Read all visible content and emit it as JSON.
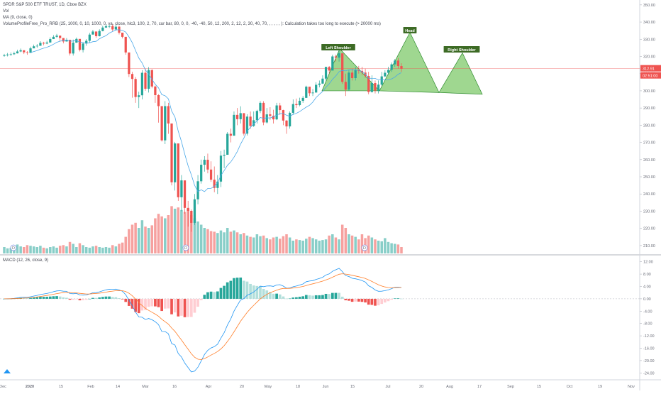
{
  "header": {
    "symbol_line": "SPDR S&P 500 ETF TRUST, 1D, Cboe BZX",
    "vol_label": "Vol",
    "ma_label": "MA (9, close, 0)",
    "vp_label": "VolumeProfileFree_Pro_RRB (25, 1000, 0, 10, 1000, 0, va, close, hlc3, 100, 2, 70, cur bar, 80, 0, 0, -40, -40, 50, 12, 200, 2, 12, 2, 30, 40, 70, , , , , , ): Calculation takes too long to execute (> 20000 ms)",
    "macd_label": "MACD (12, 26, close, 9)"
  },
  "chart_data": [
    {
      "type": "candlestick",
      "title": "SPDR S&P 500 ETF TRUST, 1D, Cboe BZX",
      "ylim": [
        205,
        352
      ],
      "yticks": [
        210,
        220,
        230,
        240,
        250,
        260,
        270,
        280,
        290,
        300,
        310,
        320,
        330,
        340,
        350
      ],
      "last_price": "312.91",
      "countdown": "02:51:00",
      "x_ticks": [
        "Dec",
        "2020",
        "15",
        "Feb",
        "14",
        "Mar",
        "16",
        "Apr",
        "20",
        "May",
        "18",
        "Jun",
        "15",
        "Jul",
        "20",
        "Aug",
        "17",
        "Sep",
        "15",
        "Oct",
        "19",
        "Nov"
      ],
      "close": [
        320.7,
        321.1,
        321.3,
        321.8,
        322.9,
        323.6,
        322.4,
        322.1,
        324.7,
        325.9,
        326.2,
        327.9,
        327.5,
        328.1,
        330.1,
        331.4,
        332.1,
        330.7,
        328.7,
        329.7,
        321.7,
        328.0,
        330.2,
        323.8,
        327.5,
        329.1,
        332.7,
        334.5,
        331.8,
        334.8,
        336.8,
        337.6,
        337.6,
        335.7,
        337.3,
        333.8,
        331.4,
        322.3,
        309.8,
        306.9,
        296.4,
        297.4,
        310.5,
        301.2,
        312.1,
        302.5,
        297.5,
        291.1,
        271.2,
        291.1,
        281.0,
        246.8,
        269.4,
        238.1,
        247.9,
        231.9,
        230.2,
        223.2,
        236.9,
        247.4,
        257.0,
        259.9,
        254.2,
        248.3,
        243.5,
        247.2,
        262.3,
        262.8,
        275.0,
        273.9,
        286.0,
        283.5,
        287.0,
        275.1,
        285.0,
        279.6,
        282.9,
        288.3,
        293.0,
        281.6,
        286.3,
        285.5,
        283.4,
        291.5,
        288.8,
        282.7,
        279.3,
        287.2,
        292.3,
        291.7,
        294.2,
        295.9,
        302.4,
        298.6,
        299.0,
        303.5,
        304.2,
        307.1,
        313.9,
        311.8,
        320.0,
        319.3,
        321.8,
        305.2,
        300.7,
        310.6,
        307.4,
        312.0,
        311.6,
        310.6,
        308.6,
        299.3,
        304.5,
        300.1,
        303.6,
        308.4,
        310.5,
        312.2,
        315.4,
        317.6,
        314.4,
        312.9
      ],
      "high": [
        321.5,
        322.0,
        322.3,
        322.8,
        323.9,
        324.6,
        323.4,
        323.1,
        325.7,
        326.9,
        327.2,
        328.9,
        328.5,
        329.1,
        331.1,
        332.4,
        333.1,
        331.7,
        329.7,
        330.7,
        323.7,
        329.8,
        331.0,
        327.0,
        328.3,
        330.1,
        333.7,
        335.5,
        332.8,
        335.8,
        337.8,
        338.6,
        338.6,
        338.6,
        338.5,
        337.9,
        333.0,
        328.0,
        314.0,
        311.0,
        308.0,
        299.5,
        312.0,
        313.0,
        313.8,
        312.5,
        303.0,
        298.0,
        281.0,
        294.0,
        293.0,
        256.0,
        270.3,
        256.0,
        251.0,
        247.0,
        236.0,
        231.0,
        240.0,
        251.0,
        260.0,
        262.0,
        263.5,
        259.0,
        256.0,
        251.0,
        265.0,
        265.8,
        276.0,
        278.0,
        288.0,
        290.0,
        291.0,
        287.0,
        286.4,
        288.0,
        288.0,
        289.0,
        294.0,
        294.0,
        290.0,
        290.5,
        289.0,
        293.0,
        293.0,
        289.0,
        283.0,
        288.0,
        295.0,
        295.5,
        296.0,
        297.0,
        303.0,
        302.0,
        301.0,
        305.0,
        306.0,
        309.0,
        314.0,
        314.4,
        321.0,
        321.0,
        323.5,
        318.0,
        310.0,
        312.0,
        313.0,
        314.0,
        314.5,
        314.0,
        313.0,
        311.0,
        309.0,
        306.0,
        306.0,
        311.0,
        312.0,
        314.0,
        316.5,
        318.5,
        319.0,
        316.0
      ],
      "low": [
        319.8,
        320.0,
        320.3,
        320.9,
        321.7,
        322.5,
        321.4,
        321.0,
        322.0,
        324.8,
        325.0,
        326.7,
        326.5,
        327.1,
        328.0,
        330.3,
        330.8,
        328.8,
        327.6,
        328.6,
        320.5,
        320.5,
        328.0,
        322.9,
        322.3,
        326.2,
        328.0,
        333.0,
        330.8,
        331.6,
        334.6,
        336.6,
        336.5,
        334.7,
        335.0,
        332.8,
        330.5,
        321.0,
        308.0,
        296.0,
        293.0,
        290.0,
        295.0,
        300.0,
        299.0,
        301.5,
        293.0,
        281.5,
        270.5,
        269.0,
        275.0,
        245.0,
        242.0,
        236.0,
        230.0,
        228.5,
        221.0,
        218.0,
        222.0,
        234.0,
        246.0,
        253.0,
        252.0,
        247.0,
        241.0,
        240.0,
        244.0,
        255.0,
        263.0,
        270.0,
        275.0,
        280.0,
        281.0,
        274.0,
        274.0,
        278.0,
        279.0,
        281.0,
        287.0,
        280.0,
        281.0,
        283.0,
        281.0,
        283.0,
        286.0,
        280.0,
        275.0,
        278.0,
        286.0,
        290.0,
        291.0,
        293.0,
        296.0,
        297.0,
        297.0,
        299.0,
        302.0,
        304.0,
        306.0,
        310.0,
        312.0,
        317.0,
        317.0,
        304.0,
        297.0,
        300.0,
        306.0,
        306.0,
        310.0,
        309.0,
        307.5,
        298.0,
        299.0,
        298.5,
        298.5,
        303.0,
        308.0,
        309.5,
        311.0,
        314.0,
        313.0,
        311.0
      ],
      "volume_rel": [
        0.1,
        0.08,
        0.09,
        0.12,
        0.14,
        0.11,
        0.1,
        0.13,
        0.12,
        0.11,
        0.1,
        0.12,
        0.09,
        0.08,
        0.1,
        0.11,
        0.09,
        0.12,
        0.13,
        0.11,
        0.18,
        0.15,
        0.1,
        0.16,
        0.13,
        0.1,
        0.09,
        0.11,
        0.12,
        0.1,
        0.09,
        0.1,
        0.09,
        0.13,
        0.11,
        0.15,
        0.17,
        0.26,
        0.38,
        0.45,
        0.48,
        0.4,
        0.52,
        0.42,
        0.4,
        0.44,
        0.55,
        0.62,
        0.58,
        0.55,
        0.6,
        0.74,
        0.7,
        0.72,
        0.68,
        0.65,
        0.7,
        0.6,
        0.55,
        0.5,
        0.45,
        0.4,
        0.38,
        0.35,
        0.34,
        0.32,
        0.36,
        0.33,
        0.4,
        0.34,
        0.36,
        0.33,
        0.3,
        0.32,
        0.28,
        0.26,
        0.25,
        0.3,
        0.27,
        0.28,
        0.24,
        0.22,
        0.25,
        0.26,
        0.23,
        0.27,
        0.3,
        0.25,
        0.2,
        0.22,
        0.21,
        0.2,
        0.23,
        0.26,
        0.24,
        0.22,
        0.2,
        0.21,
        0.22,
        0.28,
        0.3,
        0.25,
        0.22,
        0.45,
        0.4,
        0.3,
        0.28,
        0.26,
        0.22,
        0.3,
        0.24,
        0.28,
        0.25,
        0.22,
        0.2,
        0.19,
        0.24,
        0.18,
        0.16,
        0.15,
        0.14,
        0.1
      ]
    },
    {
      "type": "macd",
      "title": "MACD (12, 26, close, 9)",
      "ylim": [
        -26,
        14
      ],
      "yticks": [
        12,
        8,
        4,
        0,
        -4,
        -8,
        -12,
        -16,
        -20,
        -24
      ]
    }
  ],
  "annotations": {
    "left_shoulder": "Left Shoulder",
    "head": "Head",
    "right_shoulder": "Right Shoulder"
  },
  "colors": {
    "up": "#26a69a",
    "down": "#ef5350",
    "ma": "#4aa8e8",
    "macd_line": "#2196f3",
    "signal_line": "#ff7f2a",
    "pattern_fill": "#7fc96b",
    "pattern_stroke": "#2e8b2e",
    "label_bg": "#3d6b25",
    "price_tag": "#ef5350"
  },
  "markers": [
    "D",
    "D",
    "D"
  ]
}
